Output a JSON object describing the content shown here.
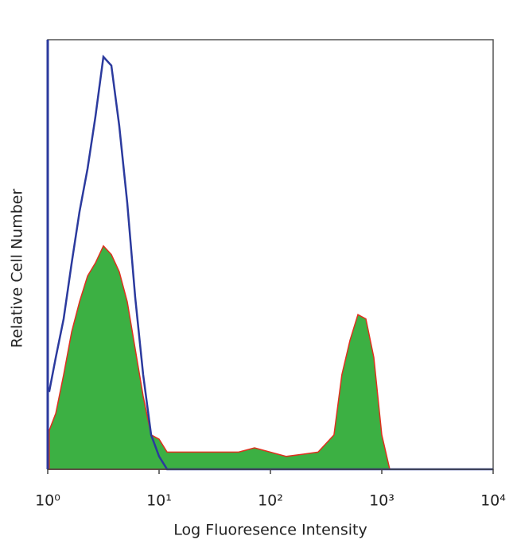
{
  "chart_data": {
    "type": "area",
    "x_label": "Log Fluoresence Intensity",
    "y_label": "Relative Cell Number",
    "x": [
      1.03,
      1.18,
      1.39,
      1.64,
      1.93,
      2.28,
      2.68,
      3.16,
      3.73,
      4.39,
      5.18,
      6.11,
      7.2,
      8.48,
      10,
      11.8,
      20,
      30,
      51.8,
      72,
      139,
      268,
      372,
      438,
      518,
      611,
      720,
      848,
      1000,
      1179,
      10000
    ],
    "series": [
      {
        "color": "#3cb043",
        "edgecolor": "#e0301e",
        "filled": true,
        "values": [
          9,
          13,
          22,
          32,
          39,
          45,
          48,
          52,
          50,
          46,
          39,
          28,
          17,
          8,
          7,
          4,
          4,
          4,
          4,
          5,
          3,
          4,
          8,
          22,
          30,
          36,
          35,
          26,
          8,
          0,
          0
        ]
      },
      {
        "color": "#2b3a9e",
        "filled": false,
        "values": [
          18,
          26,
          35,
          48,
          60,
          70,
          82,
          96,
          94,
          80,
          62,
          40,
          22,
          8,
          3,
          0,
          0,
          0,
          0,
          0,
          0,
          0,
          0,
          0,
          0,
          0,
          0,
          0,
          0,
          0,
          0
        ]
      }
    ],
    "xscale": "log",
    "xlim": [
      1,
      10000
    ],
    "xticks": [
      {
        "value": 1,
        "label": "10⁰"
      },
      {
        "value": 10,
        "label": "10¹"
      },
      {
        "value": 100,
        "label": "10²"
      },
      {
        "value": 1000,
        "label": "10³"
      },
      {
        "value": 10000,
        "label": "10⁴"
      }
    ],
    "ylim": [
      0,
      100
    ]
  }
}
